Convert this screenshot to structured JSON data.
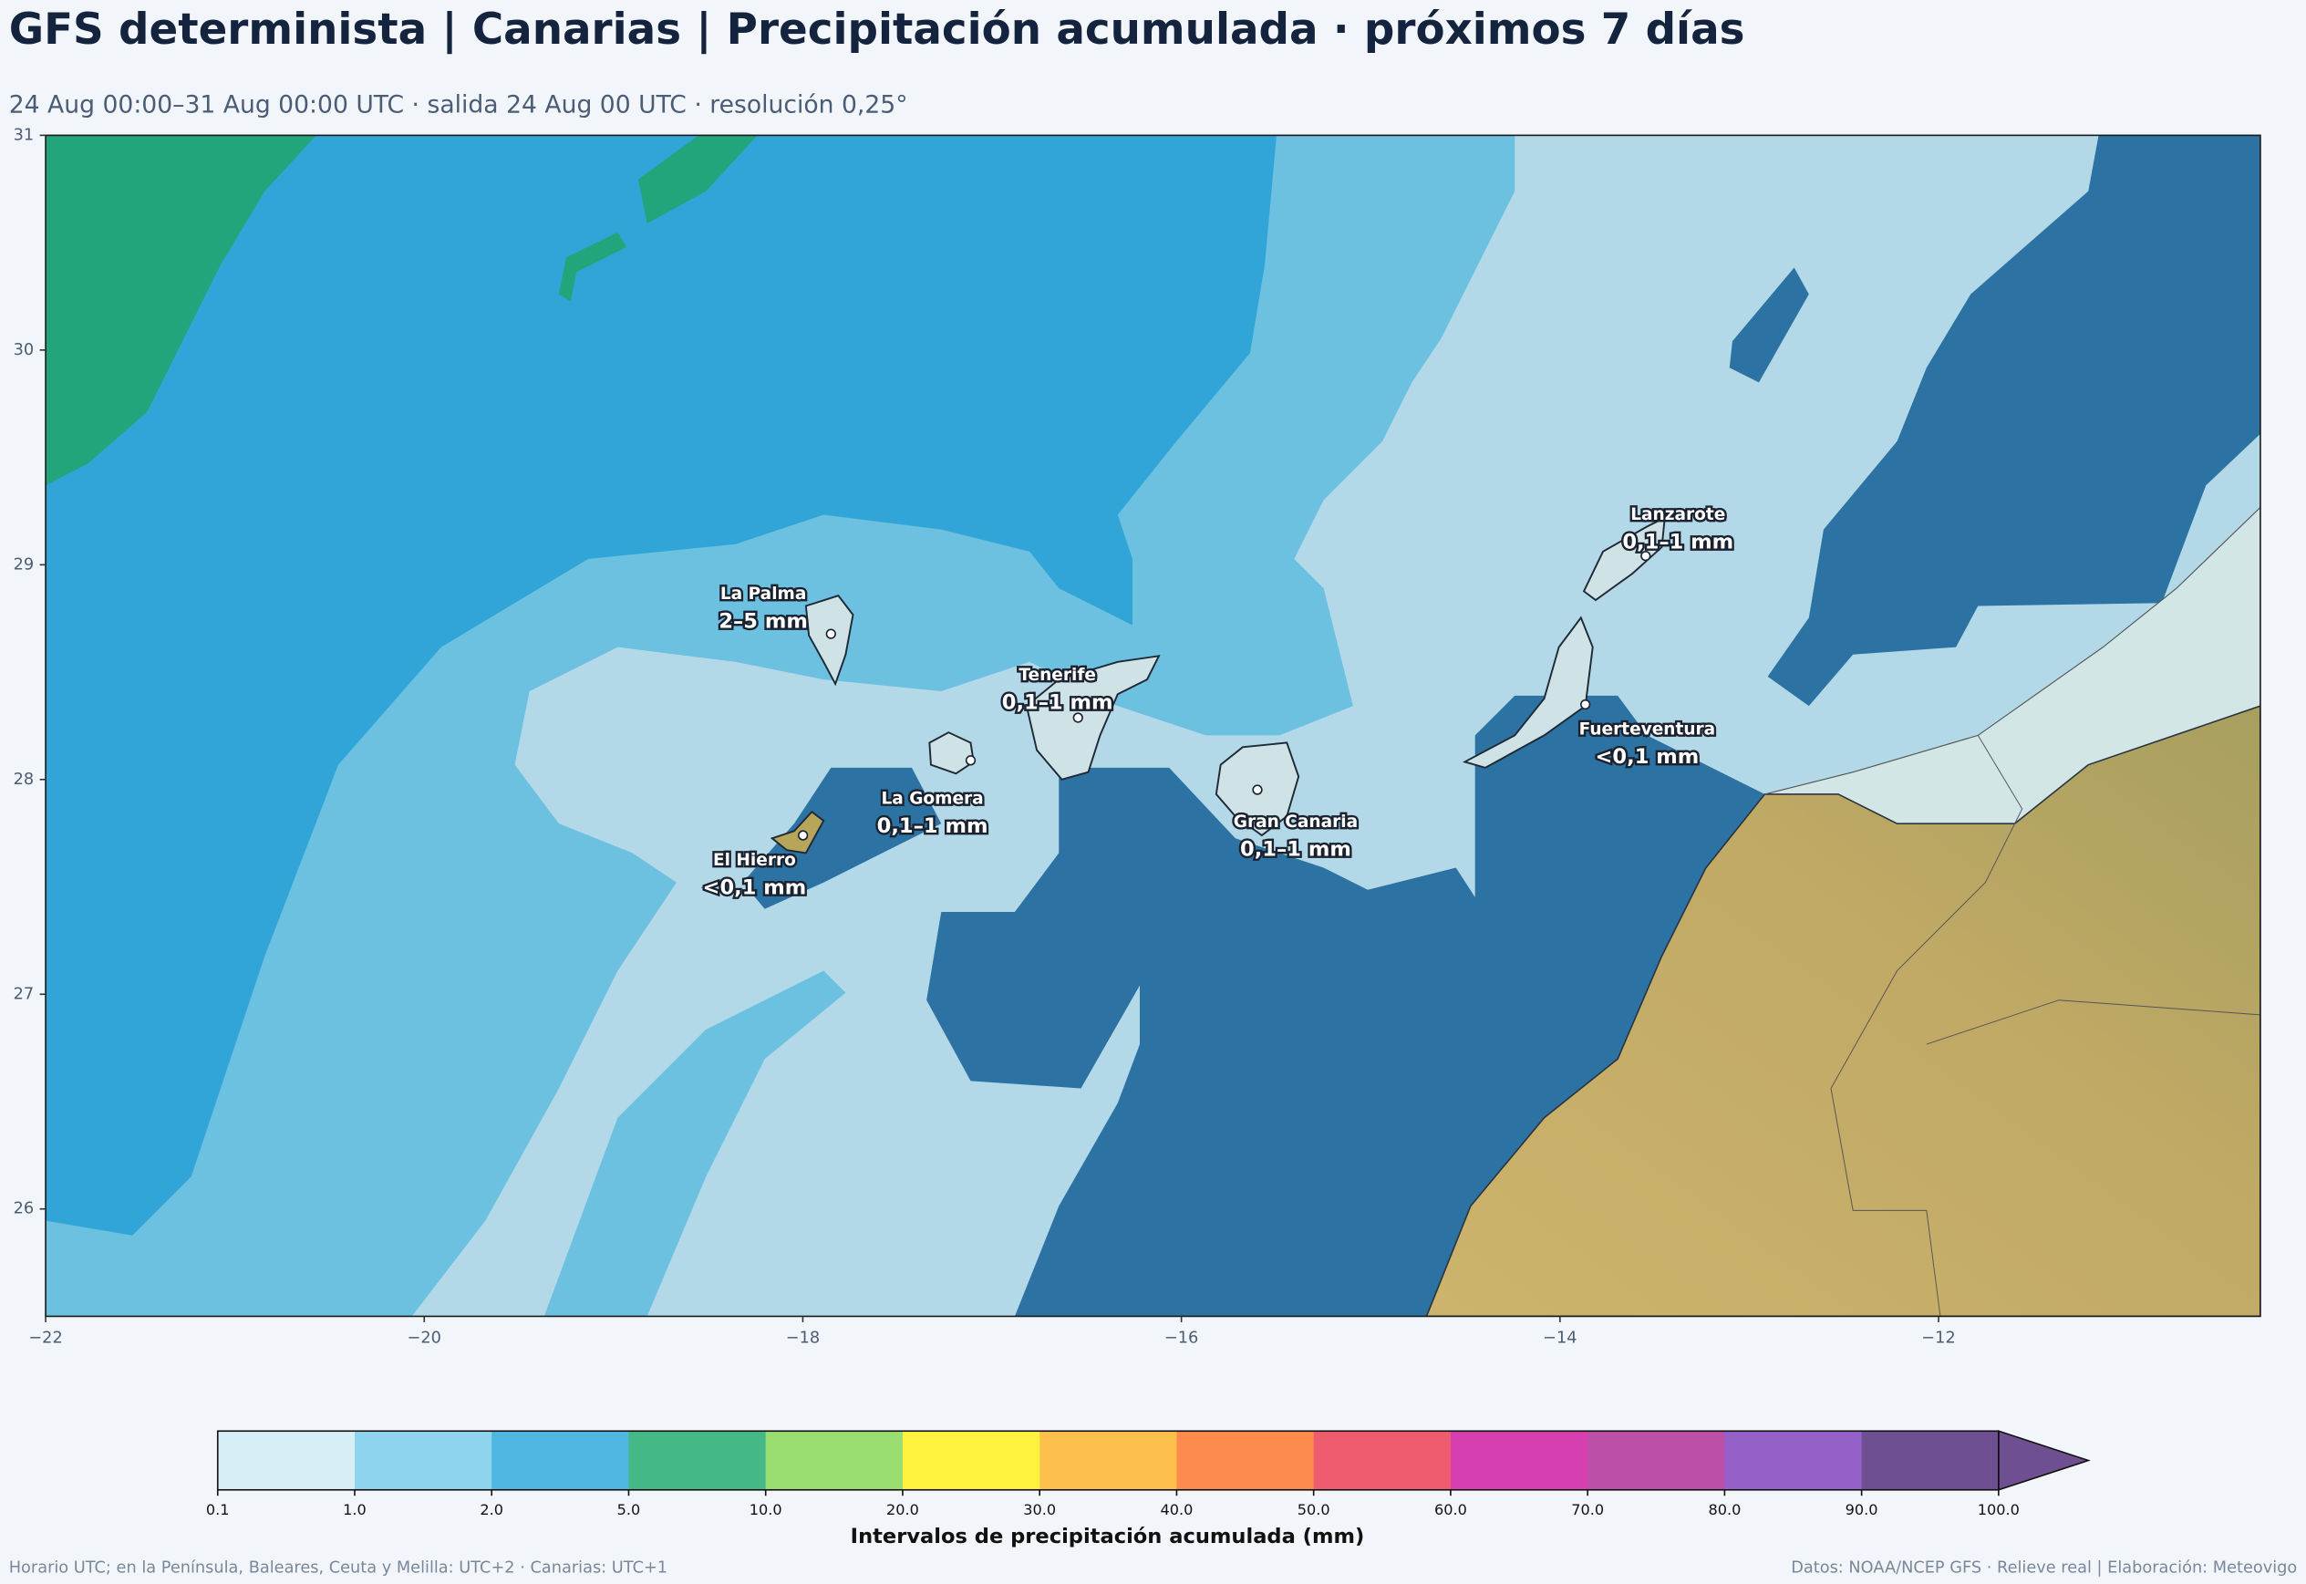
{
  "header": {
    "title": "GFS determinista | Canarias | Precipitación acumulada · próximos 7 días",
    "subtitle": "24 Aug 00:00–31 Aug 00:00 UTC · salida 24 Aug 00 UTC · resolución 0,25°"
  },
  "map": {
    "xlim": [
      -22,
      -10.3
    ],
    "ylim": [
      25.5,
      31
    ],
    "xticks": [
      {
        "value": -22,
        "label": "−22"
      },
      {
        "value": -20,
        "label": "−20"
      },
      {
        "value": -18,
        "label": "−18"
      },
      {
        "value": -16,
        "label": "−16"
      },
      {
        "value": -14,
        "label": "−14"
      },
      {
        "value": -12,
        "label": "−12"
      }
    ],
    "yticks": [
      26,
      27,
      28,
      29,
      30,
      31
    ],
    "islands": [
      {
        "name": "La Palma",
        "value": "2–5 mm"
      },
      {
        "name": "Tenerife",
        "value": "0,1–1 mm"
      },
      {
        "name": "La Gomera",
        "value": "0,1–1 mm"
      },
      {
        "name": "El Hierro",
        "value": "<0,1 mm"
      },
      {
        "name": "Gran Canaria",
        "value": "0,1–1 mm"
      },
      {
        "name": "Fuerteventura",
        "value": "<0,1 mm"
      },
      {
        "name": "Lanzarote",
        "value": "0,1–1 mm"
      }
    ]
  },
  "colorbar": {
    "label": "Intervalos de precipitación acumulada (mm)",
    "ticks": [
      0.1,
      {
        "value": 1,
        "label": "1.0"
      },
      {
        "value": 2,
        "label": "2.0"
      },
      {
        "value": 5,
        "label": "5.0"
      },
      {
        "value": 10,
        "label": "10.0"
      },
      {
        "value": 20,
        "label": "20.0"
      },
      {
        "value": 30,
        "label": "30.0"
      },
      {
        "value": 40,
        "label": "40.0"
      },
      {
        "value": 50,
        "label": "50.0"
      },
      {
        "value": 60,
        "label": "60.0"
      },
      {
        "value": 70,
        "label": "70.0"
      },
      {
        "value": 80,
        "label": "80.0"
      },
      {
        "value": 90,
        "label": "90.0"
      },
      {
        "value": 100,
        "label": "100.0"
      }
    ],
    "colors": [
      "#d6eef6",
      "#8fd4ee",
      "#4fb7e2",
      "#45b985",
      "#9ade72",
      "#fdf23e",
      "#fdc04d",
      "#fd8b4d",
      "#ef5c70",
      "#d63fb0",
      "#bc4fa8",
      "#9561c8",
      "#6e4f91"
    ]
  },
  "footer": {
    "left": "Horario UTC; en la Península, Baleares, Ceuta y Melilla: UTC+2 · Canarias: UTC+1",
    "right": "Datos: NOAA/NCEP GFS · Relieve real | Elaboración: Meteovigo"
  }
}
